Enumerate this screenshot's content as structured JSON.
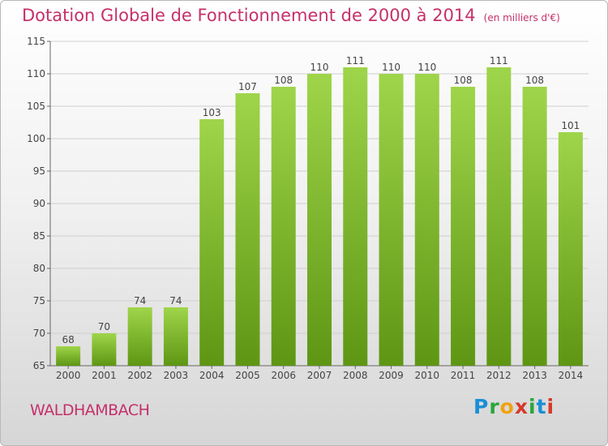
{
  "header": {
    "title": "Dotation Globale de Fonctionnement de 2000 à 2014",
    "unit": "(en milliers d'€)"
  },
  "footer": {
    "commune": "WALDHAMBACH",
    "logo": "Proxiti"
  },
  "colors": {
    "title": "#c6306a",
    "bar_top": "#9fd54a",
    "bar_bottom": "#5e9614",
    "grid": "#cfcfcf"
  },
  "chart_data": {
    "type": "bar",
    "title": "Dotation Globale de Fonctionnement de 2000 à 2014",
    "subtitle": "(en milliers d'€)",
    "categories": [
      "2000",
      "2001",
      "2002",
      "2003",
      "2004",
      "2005",
      "2006",
      "2007",
      "2008",
      "2009",
      "2010",
      "2011",
      "2012",
      "2013",
      "2014"
    ],
    "values": [
      68,
      70,
      74,
      74,
      103,
      107,
      108,
      110,
      111,
      110,
      110,
      108,
      111,
      108,
      101
    ],
    "ylim": [
      65,
      115
    ],
    "yticks": [
      65,
      70,
      75,
      80,
      85,
      90,
      95,
      100,
      105,
      110,
      115
    ],
    "grid": true,
    "data_labels": true
  }
}
